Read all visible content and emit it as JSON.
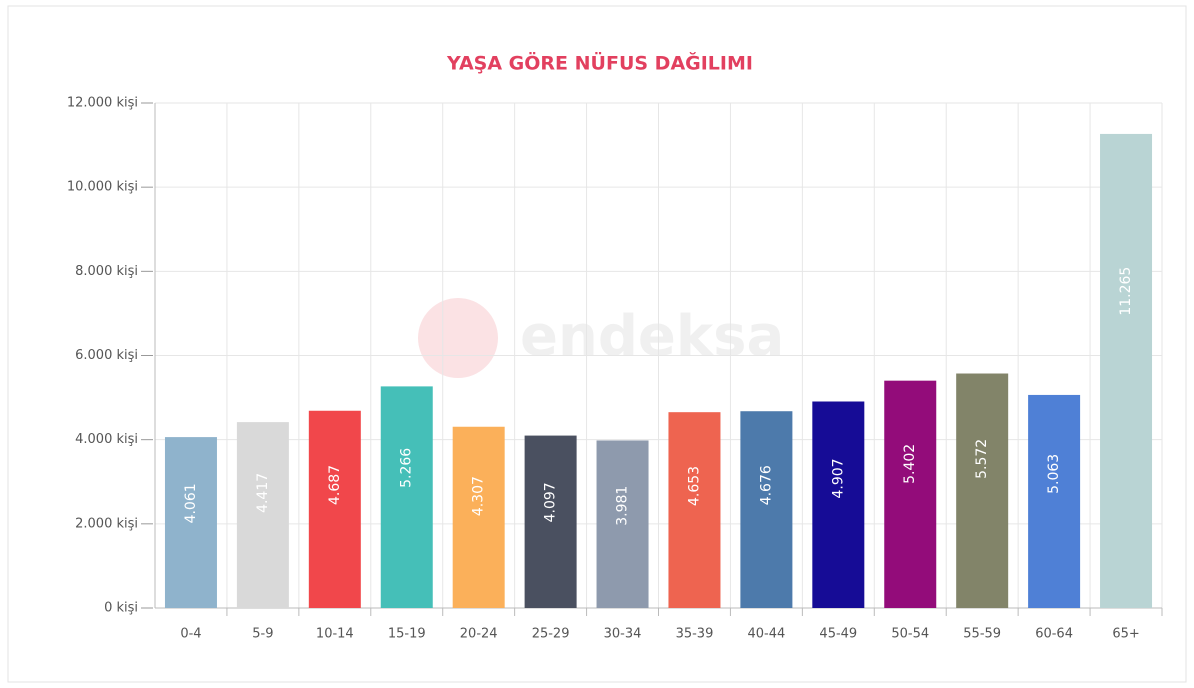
{
  "chart_data": {
    "type": "bar",
    "title": "YAŞA GÖRE NÜFUS DAĞILIMI",
    "watermark": "endeksa",
    "categories": [
      "0-4",
      "5-9",
      "10-14",
      "15-19",
      "20-24",
      "25-29",
      "30-34",
      "35-39",
      "40-44",
      "45-49",
      "50-54",
      "55-59",
      "60-64",
      "65+"
    ],
    "values": [
      4061,
      4417,
      4687,
      5266,
      4307,
      4097,
      3981,
      4653,
      4676,
      4907,
      5402,
      5572,
      5063,
      11265
    ],
    "value_labels": [
      "4.061",
      "4.417",
      "4.687",
      "5.266",
      "4.307",
      "4.097",
      "3.981",
      "4.653",
      "4.676",
      "4.907",
      "5.402",
      "5.572",
      "5.063",
      "11.265"
    ],
    "colors": [
      "#8fb3cc",
      "#d9d9d9",
      "#f1474b",
      "#45bfb8",
      "#fbb05a",
      "#4a5060",
      "#8e9aad",
      "#ee6450",
      "#4d7aab",
      "#160c96",
      "#930c7a",
      "#828469",
      "#4f80d6",
      "#b9d4d4"
    ],
    "ylim": [
      0,
      12000
    ],
    "yticks": [
      {
        "value": 0,
        "label": "0 kişi"
      },
      {
        "value": 2000,
        "label": "2.000 kişi"
      },
      {
        "value": 4000,
        "label": "4.000 kişi"
      },
      {
        "value": 6000,
        "label": "6.000 kişi"
      },
      {
        "value": 8000,
        "label": "8.000 kişi"
      },
      {
        "value": 10000,
        "label": "10.000 kişi"
      },
      {
        "value": 12000,
        "label": "12.000 kişi"
      }
    ],
    "grid": true
  }
}
